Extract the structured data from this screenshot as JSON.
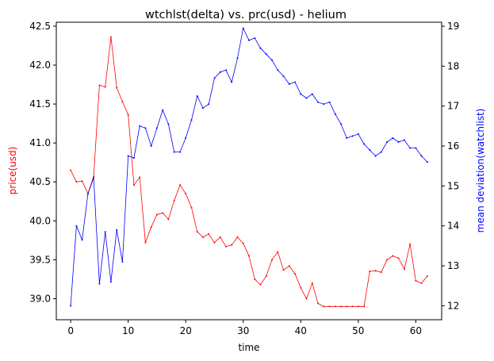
{
  "chart_data": {
    "type": "line",
    "title": "wtchlst(delta) vs. prc(usd) - helium",
    "xlabel": "time",
    "x_ticks": [
      0,
      10,
      20,
      30,
      40,
      50,
      60
    ],
    "xlim": [
      -2.5,
      64.5
    ],
    "left_axis": {
      "label": "price(usd)",
      "color": "#ff0000",
      "ylim": [
        38.73,
        42.55
      ],
      "ticks": [
        "39.0",
        "39.5",
        "40.0",
        "40.5",
        "41.0",
        "41.5",
        "42.0",
        "42.5"
      ]
    },
    "right_axis": {
      "label": "mean deviation(watchlist)",
      "color": "#0000ff",
      "ylim": [
        11.65,
        19.1
      ],
      "ticks": [
        "12",
        "13",
        "14",
        "15",
        "16",
        "17",
        "18",
        "19"
      ]
    },
    "series": [
      {
        "axis": "left",
        "color": "#ff0000",
        "values": [
          40.65,
          40.5,
          40.51,
          40.35,
          40.57,
          41.74,
          41.72,
          42.36,
          41.71,
          41.53,
          41.36,
          40.46,
          40.56,
          39.72,
          39.92,
          40.08,
          40.1,
          40.02,
          40.26,
          40.46,
          40.35,
          40.17,
          39.86,
          39.79,
          39.83,
          39.72,
          39.79,
          39.67,
          39.69,
          39.79,
          39.71,
          39.55,
          39.25,
          39.18,
          39.29,
          39.5,
          39.6,
          39.37,
          39.42,
          39.32,
          39.14,
          39.0,
          39.2,
          38.94,
          38.9,
          38.9,
          38.9,
          38.9,
          38.9,
          38.9,
          38.9,
          38.9,
          39.35,
          39.36,
          39.34,
          39.5,
          39.55,
          39.52,
          39.38,
          39.7,
          39.23,
          39.2,
          39.29
        ]
      },
      {
        "axis": "right",
        "color": "#0000ff",
        "values": [
          12.0,
          14.0,
          13.65,
          14.8,
          15.2,
          12.55,
          13.85,
          12.6,
          13.9,
          13.1,
          15.75,
          15.7,
          16.5,
          16.45,
          16.0,
          16.45,
          16.9,
          16.55,
          15.85,
          15.85,
          16.2,
          16.65,
          17.25,
          16.95,
          17.05,
          17.7,
          17.85,
          17.9,
          17.6,
          18.2,
          18.95,
          18.65,
          18.7,
          18.45,
          18.3,
          18.15,
          17.9,
          17.75,
          17.55,
          17.6,
          17.3,
          17.2,
          17.3,
          17.1,
          17.05,
          17.1,
          16.8,
          16.55,
          16.2,
          16.25,
          16.3,
          16.05,
          15.9,
          15.75,
          15.85,
          16.1,
          16.2,
          16.1,
          16.15,
          15.95,
          15.95,
          15.75,
          15.6
        ]
      }
    ]
  }
}
